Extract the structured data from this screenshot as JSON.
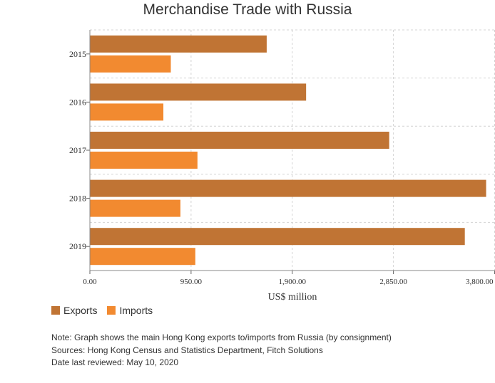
{
  "title": "Merchandise Trade with Russia",
  "chart_data": {
    "type": "bar",
    "orientation": "horizontal",
    "categories": [
      "2015",
      "2016",
      "2017",
      "2018",
      "2019"
    ],
    "series": [
      {
        "name": "Exports",
        "color": "#c07434",
        "values": [
          1660,
          2030,
          2810,
          3720,
          3520
        ]
      },
      {
        "name": "Imports",
        "color": "#f28a30",
        "values": [
          760,
          690,
          1010,
          850,
          990
        ]
      }
    ],
    "xlabel": "US$ million",
    "xlim": [
      0,
      3800
    ],
    "xticks": [
      0,
      950,
      1900,
      2850,
      3800
    ],
    "xtick_labels": [
      "0.00",
      "950.00",
      "1,900.00",
      "2,850.00",
      "3,800.00"
    ],
    "grid": true,
    "legend": "bottom-left"
  },
  "notes": [
    "Note: Graph shows the main Hong Kong exports to/imports from Russia (by consignment)",
    "Sources: Hong Kong Census and Statistics Department, Fitch Solutions",
    "Date last reviewed: May 10, 2020"
  ]
}
